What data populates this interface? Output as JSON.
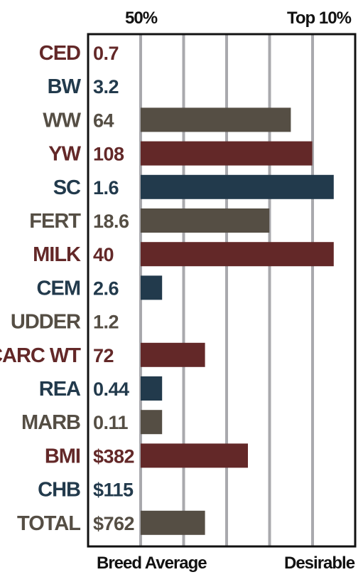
{
  "header": {
    "left_label": "50%",
    "right_label": "Top 10%"
  },
  "footer": {
    "left_label": "Breed Average",
    "right_label": "Desirable"
  },
  "colors": {
    "red": "#632828",
    "blue": "#223a4c",
    "gray": "#554e44",
    "gridline": "#a9a9ad",
    "frame": "#111111"
  },
  "chart_data": {
    "type": "bar",
    "orientation": "horizontal",
    "xlabel_left": "Breed Average",
    "xlabel_right": "Desirable",
    "top_labels": [
      "50%",
      "Top 10%"
    ],
    "scale_max": 9,
    "gridlines": 5,
    "rows": [
      {
        "trait": "CED",
        "value": "0.7",
        "bar": 0,
        "color": "red"
      },
      {
        "trait": "BW",
        "value": "3.2",
        "bar": 0,
        "color": "blue"
      },
      {
        "trait": "WW",
        "value": "64",
        "bar": 7,
        "color": "gray"
      },
      {
        "trait": "YW",
        "value": "108",
        "bar": 8,
        "color": "red"
      },
      {
        "trait": "SC",
        "value": "1.6",
        "bar": 9,
        "color": "blue"
      },
      {
        "trait": "FERT",
        "value": "18.6",
        "bar": 6,
        "color": "gray"
      },
      {
        "trait": "MILK",
        "value": "40",
        "bar": 9,
        "color": "red"
      },
      {
        "trait": "CEM",
        "value": "2.6",
        "bar": 1,
        "color": "blue"
      },
      {
        "trait": "UDDER",
        "value": "1.2",
        "bar": 0,
        "color": "gray"
      },
      {
        "trait": "CARC WT",
        "value": "72",
        "bar": 3,
        "color": "red"
      },
      {
        "trait": "REA",
        "value": "0.44",
        "bar": 1,
        "color": "blue"
      },
      {
        "trait": "MARB",
        "value": "0.11",
        "bar": 1,
        "color": "gray"
      },
      {
        "trait": "BMI",
        "value": "$382",
        "bar": 5,
        "color": "red"
      },
      {
        "trait": "CHB",
        "value": "$115",
        "bar": 0,
        "color": "blue"
      },
      {
        "trait": "TOTAL",
        "value": "$762",
        "bar": 3,
        "color": "gray"
      }
    ]
  }
}
